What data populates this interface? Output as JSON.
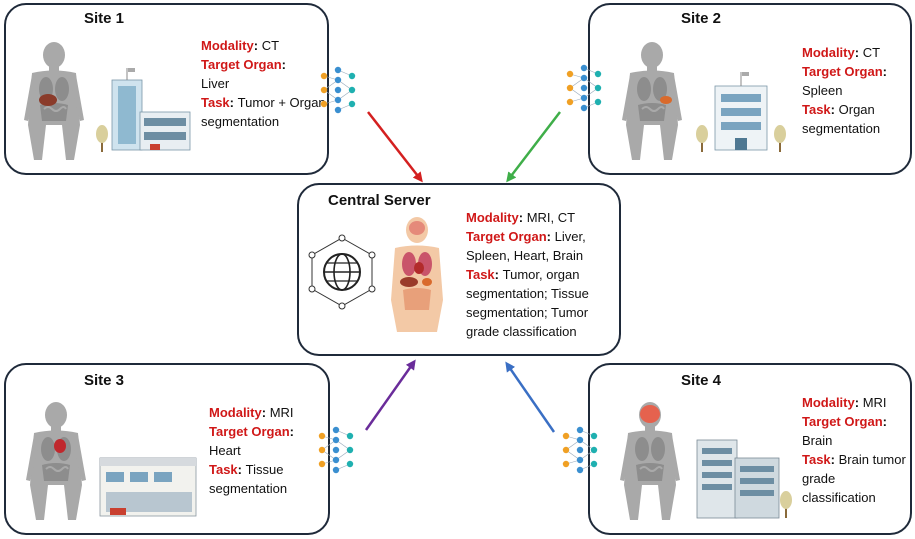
{
  "sites": [
    {
      "title": "Site 1",
      "modality_label": "Modality",
      "modality": "CT",
      "organ_label": "Target Organ",
      "organ": "Liver",
      "task_label": "Task",
      "task": "Tumor + Organ segmentation"
    },
    {
      "title": "Site 2",
      "modality_label": "Modality",
      "modality": "CT",
      "organ_label": "Target Organ",
      "organ": "Spleen",
      "task_label": "Task",
      "task": "Organ segmentation"
    },
    {
      "title": "Site 3",
      "modality_label": "Modality",
      "modality": "MRI",
      "organ_label": "Target Organ",
      "organ": "Heart",
      "task_label": "Task",
      "task": "Tissue segmentation"
    },
    {
      "title": "Site 4",
      "modality_label": "Modality",
      "modality": "MRI",
      "organ_label": "Target Organ",
      "organ": "Brain",
      "task_label": "Task",
      "task": "Brain tumor grade classification"
    }
  ],
  "server": {
    "title": "Central Server",
    "modality_label": "Modality",
    "modality": "MRI, CT",
    "organ_label": "Target Organ",
    "organ": "Liver, Spleen, Heart, Brain",
    "task_label": "Task",
    "task": "Tumor, organ segmentation; Tissue segmentation; Tumor grade classification"
  },
  "colors": {
    "label_red": "#d01818",
    "arrow_site1": "#d42020",
    "arrow_site2": "#3fae49",
    "arrow_site3": "#6a2c9a",
    "arrow_site4": "#3a6fc4",
    "neuron_orange": "#f0a024",
    "neuron_blue": "#3a8fd0",
    "neuron_teal": "#1fb0b0"
  },
  "icons": [
    "human-body-icon",
    "hospital-building-icon",
    "neural-network-icon",
    "globe-network-icon"
  ]
}
